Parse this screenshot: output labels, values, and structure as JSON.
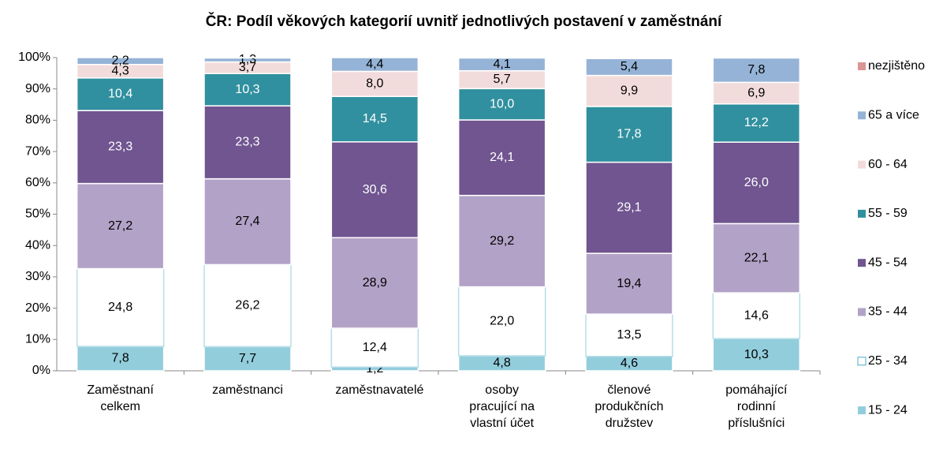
{
  "chart_data": {
    "type": "stacked_bar",
    "title": "ČR: Podíl věkových kategorií  uvnitř jednotlivých postavení v zaměstnání",
    "categories": [
      "Zaměstnaní celkem",
      "zaměstnanci",
      "zaměstnavatelé",
      "osoby pracující na vlastní účet",
      "členové produkčních družstev",
      "pomáhající rodinní příslušníci"
    ],
    "ylim": [
      0,
      100
    ],
    "yticks": [
      {
        "value": 0,
        "label": "0%"
      },
      {
        "value": 10,
        "label": "10%"
      },
      {
        "value": 20,
        "label": "20%"
      },
      {
        "value": 30,
        "label": "30%"
      },
      {
        "value": 40,
        "label": "40%"
      },
      {
        "value": 50,
        "label": "50%"
      },
      {
        "value": 60,
        "label": "60%"
      },
      {
        "value": 70,
        "label": "70%"
      },
      {
        "value": 80,
        "label": "80%"
      },
      {
        "value": 90,
        "label": "90%"
      },
      {
        "value": 100,
        "label": "100%"
      }
    ],
    "legend": "right",
    "series": [
      {
        "name": "15 - 24",
        "color": "#92cddc",
        "label_color": "#000000",
        "values": [
          7.8,
          7.7,
          1.2,
          4.8,
          4.6,
          10.3
        ],
        "value_labels": [
          "7,8",
          "7,7",
          "1,2",
          "4,8",
          "4,6",
          "10,3"
        ]
      },
      {
        "name": "25 - 34",
        "color": "#ffffff",
        "label_color": "#000000",
        "values": [
          24.8,
          26.2,
          12.4,
          22.0,
          13.5,
          14.6
        ],
        "value_labels": [
          "24,8",
          "26,2",
          "12,4",
          "22,0",
          "13,5",
          "14,6"
        ]
      },
      {
        "name": "35 - 44",
        "color": "#b3a2c7",
        "label_color": "#000000",
        "values": [
          27.2,
          27.4,
          28.9,
          29.2,
          19.4,
          22.1
        ],
        "value_labels": [
          "27,2",
          "27,4",
          "28,9",
          "29,2",
          "19,4",
          "22,1"
        ]
      },
      {
        "name": "45 - 54",
        "color": "#705590",
        "label_color": "#ffffff",
        "values": [
          23.3,
          23.3,
          30.6,
          24.1,
          29.1,
          26.0
        ],
        "value_labels": [
          "23,3",
          "23,3",
          "30,6",
          "24,1",
          "29,1",
          "26,0"
        ]
      },
      {
        "name": "55 - 59",
        "color": "#31909f",
        "label_color": "#ffffff",
        "values": [
          10.4,
          10.3,
          14.5,
          10.0,
          17.8,
          12.2
        ],
        "value_labels": [
          "10,4",
          "10,3",
          "14,5",
          "10,0",
          "17,8",
          "12,2"
        ]
      },
      {
        "name": "60 - 64",
        "color": "#f2dcdb",
        "label_color": "#000000",
        "values": [
          4.3,
          3.7,
          8.0,
          5.7,
          9.9,
          6.9
        ],
        "value_labels": [
          "4,3",
          "3,7",
          "8,0",
          "5,7",
          "9,9",
          "6,9"
        ]
      },
      {
        "name": "65 a více",
        "color": "#95b3d7",
        "label_color": "#000000",
        "values": [
          2.2,
          1.3,
          4.4,
          4.1,
          5.4,
          7.8
        ],
        "value_labels": [
          "2,2",
          "1,3",
          "4,4",
          "4,1",
          "5,4",
          "7,8"
        ]
      },
      {
        "name": "nezjištěno",
        "color": "#d99694",
        "label_color": "#000000",
        "values": [
          0,
          0.1,
          0,
          0.1,
          0.3,
          0.1
        ]
      }
    ]
  }
}
